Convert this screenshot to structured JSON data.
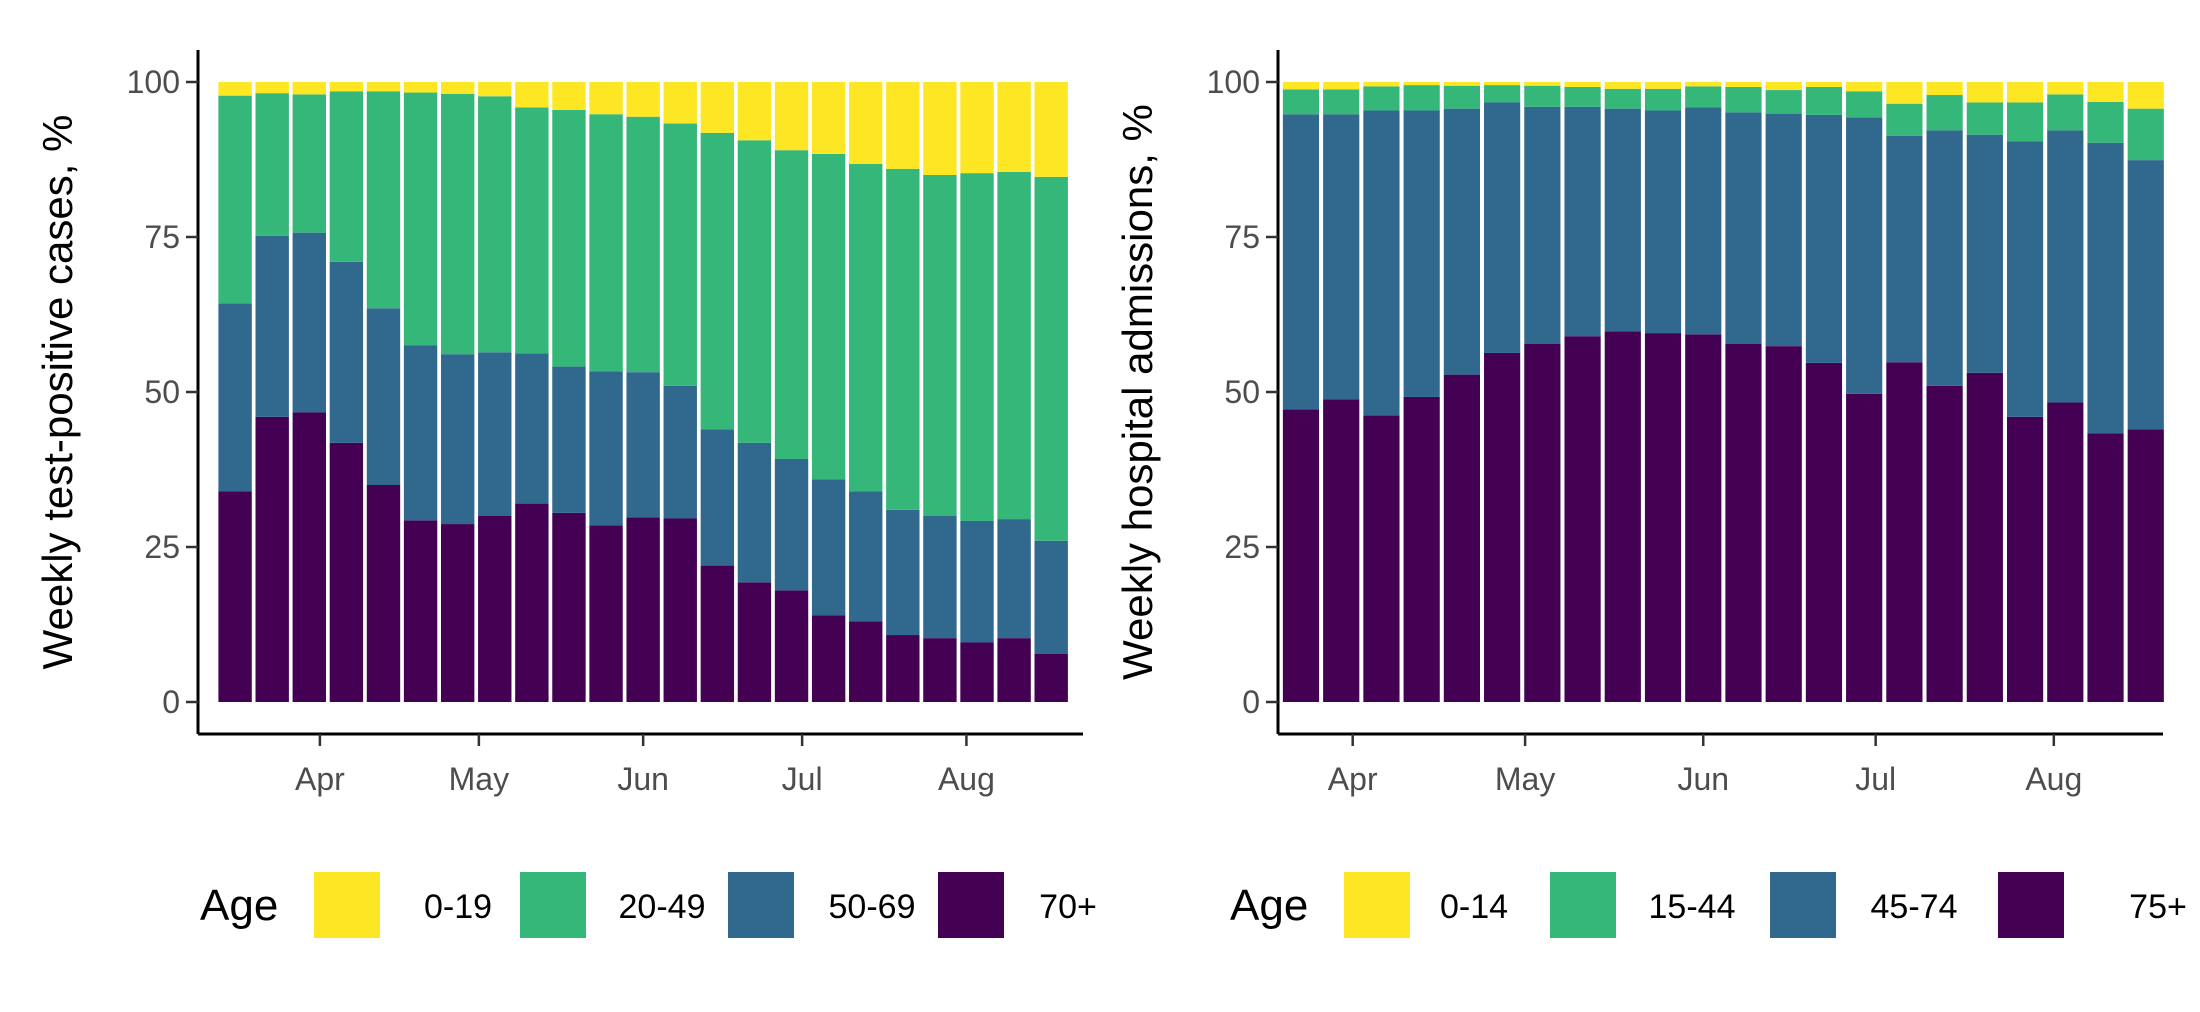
{
  "chart_data": [
    {
      "type": "bar",
      "stacked": true,
      "ylabel": "Weekly test-positive cases, %",
      "ylim": [
        0,
        100
      ],
      "yticks": [
        "0",
        "25",
        "50",
        "75",
        "100"
      ],
      "xlim": [
        "2020-03-09",
        "2020-08-23"
      ],
      "x_ticks": [
        {
          "date": "2020-04-01",
          "label": "Apr"
        },
        {
          "date": "2020-05-01",
          "label": "May"
        },
        {
          "date": "2020-06-01",
          "label": "Jun"
        },
        {
          "date": "2020-07-01",
          "label": "Jul"
        },
        {
          "date": "2020-08-01",
          "label": "Aug"
        }
      ],
      "weeks": [
        "2020-03-16",
        "2020-03-23",
        "2020-03-30",
        "2020-04-06",
        "2020-04-13",
        "2020-04-20",
        "2020-04-27",
        "2020-05-04",
        "2020-05-11",
        "2020-05-18",
        "2020-05-25",
        "2020-06-01",
        "2020-06-08",
        "2020-06-15",
        "2020-06-22",
        "2020-06-29",
        "2020-07-06",
        "2020-07-13",
        "2020-07-20",
        "2020-07-27",
        "2020-08-03",
        "2020-08-10",
        "2020-08-17"
      ],
      "legend": {
        "title": "Age",
        "position": "bottom"
      },
      "series": [
        {
          "name": "70+",
          "color": "#440154",
          "values": [
            34,
            46,
            46.7,
            41.8,
            35,
            29.3,
            28.7,
            30,
            32,
            30.5,
            28.5,
            29.8,
            29.6,
            22,
            19.3,
            18,
            14,
            13,
            10.8,
            10.3,
            9.6,
            10.3,
            7.8
          ]
        },
        {
          "name": "50-69",
          "color": "#31688E",
          "values": [
            30.3,
            29.2,
            29,
            29.2,
            28.5,
            28.2,
            27.4,
            26.4,
            24.2,
            23.6,
            24.8,
            23.4,
            21.4,
            22,
            22.5,
            21.2,
            21.9,
            21,
            20.2,
            19.7,
            19.6,
            19.2,
            18.2
          ]
        },
        {
          "name": "20-49",
          "color": "#35B779",
          "values": [
            33.5,
            23,
            22.3,
            27.5,
            35,
            40.8,
            42,
            41.3,
            39.7,
            41.4,
            41.5,
            41.2,
            42.3,
            47.8,
            48.8,
            49.8,
            52.5,
            52.8,
            55,
            55,
            56.1,
            56,
            58.7
          ]
        },
        {
          "name": "0-19",
          "color": "#FDE725",
          "values": [
            2.2,
            1.8,
            2,
            1.5,
            1.5,
            1.7,
            1.9,
            2.3,
            4.1,
            4.5,
            5.2,
            5.6,
            6.7,
            8.2,
            9.4,
            11,
            11.6,
            13.2,
            14,
            15,
            14.7,
            14.5,
            15.3
          ]
        }
      ]
    },
    {
      "type": "bar",
      "stacked": true,
      "ylabel": "Weekly hospital admissions, %",
      "ylim": [
        0,
        100
      ],
      "yticks": [
        "0",
        "25",
        "50",
        "75",
        "100"
      ],
      "xlim": [
        "2020-03-19",
        "2020-08-20"
      ],
      "x_ticks": [
        {
          "date": "2020-04-01",
          "label": "Apr"
        },
        {
          "date": "2020-05-01",
          "label": "May"
        },
        {
          "date": "2020-06-01",
          "label": "Jun"
        },
        {
          "date": "2020-07-01",
          "label": "Jul"
        },
        {
          "date": "2020-08-01",
          "label": "Aug"
        }
      ],
      "weeks": [
        "2020-03-23",
        "2020-03-30",
        "2020-04-06",
        "2020-04-13",
        "2020-04-20",
        "2020-04-27",
        "2020-05-04",
        "2020-05-11",
        "2020-05-18",
        "2020-05-25",
        "2020-06-01",
        "2020-06-08",
        "2020-06-15",
        "2020-06-22",
        "2020-06-29",
        "2020-07-06",
        "2020-07-13",
        "2020-07-20",
        "2020-07-27",
        "2020-08-03",
        "2020-08-10",
        "2020-08-17"
      ],
      "legend": {
        "title": "Age",
        "position": "bottom"
      },
      "series": [
        {
          "name": "75+",
          "color": "#440154",
          "values": [
            47.2,
            48.8,
            46.2,
            49.2,
            52.8,
            56.3,
            57.8,
            59,
            59.8,
            59.5,
            59.3,
            57.8,
            57.4,
            54.7,
            49.7,
            54.8,
            51,
            53.1,
            46,
            48.3,
            43.3,
            44
          ]
        },
        {
          "name": "45-74",
          "color": "#31688E",
          "values": [
            47.6,
            46,
            49.2,
            46.2,
            42.9,
            40.4,
            38.2,
            37,
            35.9,
            35.9,
            36.6,
            37.3,
            37.5,
            40,
            44.6,
            36.5,
            41.2,
            38.4,
            44.4,
            43.9,
            46.9,
            43.4
          ]
        },
        {
          "name": "15-44",
          "color": "#35B779",
          "values": [
            4,
            4,
            3.9,
            4.1,
            3.7,
            2.8,
            3.4,
            3.2,
            3.2,
            3.5,
            3.4,
            4.1,
            3.8,
            4.5,
            4.2,
            5.2,
            5.7,
            5.2,
            6.3,
            5.8,
            6.6,
            8.3
          ]
        },
        {
          "name": "0-14",
          "color": "#FDE725",
          "values": [
            1.2,
            1.2,
            0.7,
            0.5,
            0.6,
            0.5,
            0.6,
            0.8,
            1.1,
            1.1,
            0.7,
            0.8,
            1.3,
            0.8,
            1.5,
            3.5,
            2.1,
            3.3,
            3.3,
            2,
            3.2,
            4.3
          ]
        }
      ]
    }
  ]
}
